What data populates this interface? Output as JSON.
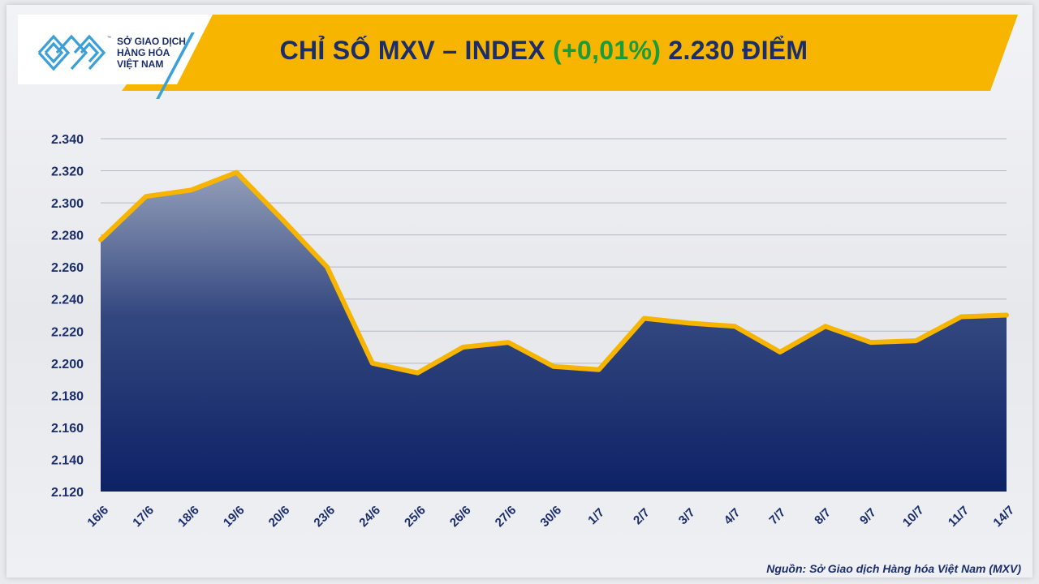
{
  "header": {
    "title_prefix": "CHỈ SỐ MXV – INDEX",
    "title_change": "(+0,01%)",
    "title_value": "2.230 ĐIỂM"
  },
  "logo": {
    "line1": "SỞ GIAO DỊCH",
    "line2": "HÀNG HÓA",
    "line3": "VIỆT NAM",
    "tm": "™"
  },
  "source": "Nguồn: Sở Giao dịch Hàng hóa Việt Nam (MXV)",
  "colors": {
    "banner": "#f7b500",
    "title_text": "#1b2d6b",
    "change_text": "#1a9c3d",
    "line": "#f7b500",
    "area_top": "#8e9ab6",
    "area_bottom": "#0d2166",
    "logo_blue": "#3ba0d8"
  },
  "chart_data": {
    "type": "area",
    "title": "CHỈ SỐ MXV – INDEX (+0,01%) 2.230 ĐIỂM",
    "xlabel": "",
    "ylabel": "",
    "categories": [
      "16/6",
      "17/6",
      "18/6",
      "19/6",
      "20/6",
      "23/6",
      "24/6",
      "25/6",
      "26/6",
      "27/6",
      "30/6",
      "1/7",
      "2/7",
      "3/7",
      "4/7",
      "7/7",
      "8/7",
      "9/7",
      "10/7",
      "11/7",
      "14/7"
    ],
    "series": [
      {
        "values": [
          2277,
          2304,
          2308,
          2319,
          2290,
          2260,
          2200,
          2194,
          2210,
          2213,
          2198,
          2196,
          2228,
          2225,
          2223,
          2207,
          2223,
          2213,
          2214,
          2229,
          2230
        ]
      }
    ],
    "ylim": [
      2120,
      2340
    ],
    "yticks": [
      2120,
      2140,
      2160,
      2180,
      2200,
      2220,
      2240,
      2260,
      2280,
      2300,
      2320,
      2340
    ],
    "ytick_labels": [
      "2.120",
      "2.140",
      "2.160",
      "2.180",
      "2.200",
      "2.220",
      "2.240",
      "2.260",
      "2.280",
      "2.300",
      "2.320",
      "2.340"
    ],
    "grid": true,
    "legend": "none"
  }
}
